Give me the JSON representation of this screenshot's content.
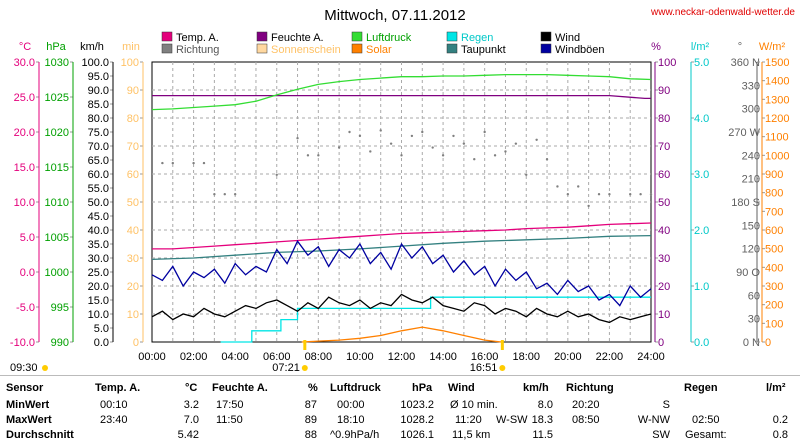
{
  "page": {
    "title": "Mittwoch, 07.11.2012",
    "website": "www.neckar-odenwald-wetter.de"
  },
  "chart_data": {
    "type": "line",
    "x_ticks": [
      "00:00",
      "02:00",
      "04:00",
      "06:00",
      "08:00",
      "10:00",
      "12:00",
      "14:00",
      "16:00",
      "18:00",
      "20:00",
      "22:00",
      "24:00"
    ],
    "axes": [
      {
        "unit": "°C",
        "ticks": [
          "30.0",
          "25.0",
          "20.0",
          "15.0",
          "10.0",
          "5.0",
          "0.0",
          "-5.0",
          "-10.0"
        ],
        "color": "#e4007c"
      },
      {
        "unit": "hPa",
        "ticks": [
          "1030",
          "1025",
          "1020",
          "1015",
          "1010",
          "1005",
          "1000",
          "995",
          "990"
        ],
        "color": "#00a000"
      },
      {
        "unit": "km/h",
        "ticks": [
          "100.0",
          "95.0",
          "90.0",
          "85.0",
          "80.0",
          "75.0",
          "70.0",
          "65.0",
          "60.0",
          "55.0",
          "50.0",
          "45.0",
          "40.0",
          "35.0",
          "30.0",
          "25.0",
          "20.0",
          "15.0",
          "10.0",
          "5.0",
          "0.0"
        ],
        "color": "#000000"
      },
      {
        "unit": "min",
        "ticks": [
          "100",
          "90",
          "80",
          "70",
          "60",
          "50",
          "40",
          "30",
          "20",
          "10",
          "0"
        ],
        "color": "#ffc266"
      },
      {
        "unit": "%",
        "ticks": [
          "100",
          "90",
          "80",
          "70",
          "60",
          "50",
          "40",
          "30",
          "20",
          "10",
          "0"
        ],
        "color": "#800080"
      },
      {
        "unit": "l/m²",
        "ticks": [
          "5.0",
          "4.0",
          "3.0",
          "2.0",
          "1.0",
          "0.0"
        ],
        "color": "#00c8c8"
      },
      {
        "unit": "°",
        "ticks": [
          "360 N",
          "330",
          "300",
          "270 W",
          "240",
          "210",
          "180 S",
          "150",
          "120",
          "90 O",
          "60",
          "30",
          "0 N"
        ],
        "color": "#606060"
      },
      {
        "unit": "W/m²",
        "ticks": [
          "1500",
          "1400",
          "1300",
          "1200",
          "1100",
          "1000",
          "900",
          "800",
          "700",
          "600",
          "500",
          "400",
          "300",
          "200",
          "100",
          "0"
        ],
        "color": "#ff8000"
      }
    ],
    "legend": [
      {
        "label": "Temp. A.",
        "color": "#e4007c"
      },
      {
        "label": "Richtung",
        "color": "#808080"
      },
      {
        "label": "Feuchte A.",
        "color": "#800080"
      },
      {
        "label": "Sonnenschein",
        "color": "#ffd8a0"
      },
      {
        "label": "Luftdruck",
        "color": "#33dd33"
      },
      {
        "label": "Solar",
        "color": "#ff8000"
      },
      {
        "label": "Regen",
        "color": "#00e5e5"
      },
      {
        "label": "Taupunkt",
        "color": "#338080"
      },
      {
        "label": "Wind",
        "color": "#000000"
      },
      {
        "label": "Windböen",
        "color": "#0000a0"
      }
    ],
    "series": [
      {
        "name": "Temp. A.",
        "unit": "°C",
        "color": "#e4007c",
        "x": [
          0,
          1,
          2,
          3,
          4,
          5,
          6,
          7,
          8,
          9,
          10,
          11,
          12,
          13,
          14,
          15,
          16,
          17,
          18,
          19,
          20,
          21,
          22,
          23,
          24
        ],
        "y": [
          3.3,
          3.3,
          3.5,
          3.7,
          3.9,
          4.1,
          4.3,
          4.5,
          4.7,
          4.9,
          5.1,
          5.3,
          5.5,
          5.6,
          5.7,
          5.8,
          5.9,
          6.0,
          6.2,
          6.3,
          6.4,
          6.6,
          6.8,
          6.9,
          7.0
        ]
      },
      {
        "name": "Taupunkt",
        "unit": "°C",
        "color": "#338080",
        "x": [
          0,
          2,
          4,
          6,
          8,
          10,
          12,
          14,
          16,
          18,
          20,
          22,
          24
        ],
        "y": [
          1.8,
          2.0,
          2.4,
          2.8,
          3.0,
          3.3,
          3.7,
          4.1,
          4.4,
          4.6,
          4.8,
          5.1,
          5.2
        ]
      },
      {
        "name": "Feuchte A.",
        "unit": "%",
        "color": "#800080",
        "x": [
          0,
          2,
          4,
          6,
          8,
          10,
          12,
          14,
          16,
          18,
          20,
          22,
          23.7,
          24
        ],
        "y": [
          88,
          88,
          88,
          88,
          88,
          88,
          88,
          88,
          88,
          88,
          88,
          88,
          87,
          87
        ]
      },
      {
        "name": "Luftdruck",
        "unit": "hPa",
        "color": "#33dd33",
        "x": [
          0,
          1,
          2,
          3,
          4,
          5,
          6,
          7,
          8,
          9,
          10,
          11,
          12,
          13,
          14,
          15,
          16,
          17,
          18,
          19,
          20,
          21,
          22,
          23,
          24
        ],
        "y": [
          1023.2,
          1023.3,
          1023.5,
          1023.7,
          1023.9,
          1024.4,
          1025.3,
          1026.1,
          1026.8,
          1027.2,
          1027.5,
          1027.7,
          1027.9,
          1027.9,
          1028.0,
          1028.0,
          1028.1,
          1028.2,
          1028.2,
          1028.2,
          1028.1,
          1028.0,
          1027.9,
          1027.6,
          1027.5
        ]
      },
      {
        "name": "Regen",
        "unit": "l/m²",
        "color": "#00e5e5",
        "x": [
          3.3,
          4.8,
          5.0,
          6.2,
          6.5,
          7.0,
          7.2,
          13.2,
          13.4,
          24
        ],
        "y": [
          0,
          0.2,
          0.2,
          0.4,
          0.4,
          0.6,
          0.6,
          0.6,
          0.8,
          0.8
        ]
      },
      {
        "name": "Solar",
        "unit": "W/m²",
        "color": "#ff8000",
        "x": [
          7.2,
          8,
          9,
          10,
          11,
          12,
          13,
          14,
          15,
          16,
          16.8
        ],
        "y": [
          0,
          5,
          10,
          20,
          35,
          60,
          80,
          60,
          35,
          10,
          0
        ]
      },
      {
        "name": "Wind",
        "unit": "km/h",
        "color": "#000000",
        "x": [
          0,
          0.5,
          1,
          1.5,
          2,
          2.5,
          3,
          3.5,
          4,
          4.5,
          5,
          5.5,
          6,
          6.5,
          7,
          7.5,
          8,
          8.5,
          9,
          9.5,
          10,
          10.5,
          11,
          11.5,
          12,
          12.5,
          13,
          13.5,
          14,
          14.5,
          15,
          15.5,
          16,
          16.5,
          17,
          17.5,
          18,
          18.5,
          19,
          19.5,
          20,
          20.5,
          21,
          21.5,
          22,
          22.5,
          23,
          23.5,
          24
        ],
        "y": [
          9,
          11,
          8,
          10,
          9,
          12,
          10,
          9,
          11,
          13,
          12,
          14,
          15,
          13,
          11,
          14,
          12,
          16,
          14,
          13,
          15,
          12,
          14,
          13,
          17,
          15,
          14,
          16,
          13,
          12,
          11,
          14,
          13,
          10,
          12,
          11,
          9,
          12,
          10,
          9,
          11,
          9,
          10,
          8,
          7,
          9,
          8,
          9,
          10
        ]
      },
      {
        "name": "Windböen",
        "unit": "km/h",
        "color": "#0000a0",
        "x": [
          0,
          0.5,
          1,
          1.5,
          2,
          2.5,
          3,
          3.5,
          4,
          4.5,
          5,
          5.5,
          6,
          6.5,
          7,
          7.5,
          8,
          8.5,
          9,
          9.5,
          10,
          10.5,
          11,
          11.5,
          12,
          12.5,
          13,
          13.5,
          14,
          14.5,
          15,
          15.5,
          16,
          16.5,
          17,
          17.5,
          18,
          18.5,
          19,
          19.5,
          20,
          20.5,
          21,
          21.5,
          22,
          22.5,
          23,
          23.5,
          24
        ],
        "y": [
          24,
          22,
          27,
          20,
          25,
          23,
          26,
          21,
          28,
          24,
          27,
          25,
          33,
          28,
          36,
          31,
          34,
          27,
          33,
          30,
          35,
          28,
          32,
          26,
          35,
          30,
          34,
          28,
          31,
          25,
          29,
          24,
          27,
          20,
          26,
          22,
          25,
          19,
          21,
          17,
          22,
          18,
          20,
          15,
          17,
          13,
          20,
          16,
          19
        ]
      },
      {
        "name": "Richtung",
        "unit": "°",
        "color": "#808080",
        "points": [
          [
            0.5,
            230
          ],
          [
            1,
            230
          ],
          [
            2,
            230
          ],
          [
            2.5,
            230
          ],
          [
            3,
            190
          ],
          [
            3.5,
            190
          ],
          [
            4,
            190
          ],
          [
            6,
            215
          ],
          [
            7,
            262
          ],
          [
            7.5,
            240
          ],
          [
            8,
            240
          ],
          [
            9,
            250
          ],
          [
            9.5,
            270
          ],
          [
            10,
            265
          ],
          [
            10.5,
            245
          ],
          [
            11,
            272
          ],
          [
            11.5,
            255
          ],
          [
            12,
            240
          ],
          [
            12.5,
            265
          ],
          [
            13,
            270
          ],
          [
            13.5,
            250
          ],
          [
            14,
            240
          ],
          [
            14.5,
            265
          ],
          [
            15,
            255
          ],
          [
            15.5,
            235
          ],
          [
            16,
            270
          ],
          [
            16.5,
            240
          ],
          [
            17,
            245
          ],
          [
            17.5,
            255
          ],
          [
            18,
            215
          ],
          [
            18.5,
            260
          ],
          [
            19,
            235
          ],
          [
            19.5,
            200
          ],
          [
            20,
            190
          ],
          [
            20.5,
            200
          ],
          [
            21,
            175
          ],
          [
            21.5,
            190
          ],
          [
            22,
            190
          ],
          [
            23,
            190
          ],
          [
            23.5,
            190
          ],
          [
            24,
            190
          ]
        ]
      }
    ],
    "bottom_markers": {
      "sunrise": "07:21",
      "sunset": "16:51",
      "start_time": "09:30"
    }
  },
  "table": {
    "headers": {
      "sensor": "Sensor",
      "temp": "Temp. A.",
      "temp_unit": "°C",
      "feuchte": "Feuchte A.",
      "feuchte_unit": "%",
      "luftdruck": "Luftdruck",
      "luftdruck_unit": "hPa",
      "wind": "Wind",
      "wind_unit": "km/h",
      "richtung": "Richtung",
      "regen": "Regen",
      "regen_unit": "l/m²"
    },
    "min": {
      "label": "MinWert",
      "temp_time": "00:10",
      "temp_val": "3.2",
      "feuchte_time": "17:50",
      "feuchte_val": "87",
      "lufd_time": "00:00",
      "lufd_val": "1023.2",
      "wind_label": "Ø 10 min.",
      "wind_val": "8.0",
      "richt_time": "20:20",
      "richt_val": "S",
      "regen_time": "",
      "regen_val": ""
    },
    "max": {
      "label": "MaxWert",
      "temp_time": "23:40",
      "temp_val": "7.0",
      "feuchte_time": "11:50",
      "feuchte_val": "89",
      "lufd_time": "18:10",
      "lufd_val": "1028.2",
      "wind_label": "11:20",
      "wind_dir": "W-SW",
      "wind_val": "18.3",
      "richt_time": "08:50",
      "richt_val": "W-NW",
      "regen_time": "02:50",
      "regen_val": "0.2"
    },
    "avg": {
      "label": "Durchschnitt",
      "temp_val": "5.42",
      "feuchte_val": "88",
      "lufd_time": "^0.9hPa/h",
      "lufd_val": "1026.1",
      "wind_label": "11,5 km",
      "wind_val": "11.5",
      "richt_val": "SW",
      "regen_time": "Gesamt:",
      "regen_val": "0.8"
    }
  }
}
